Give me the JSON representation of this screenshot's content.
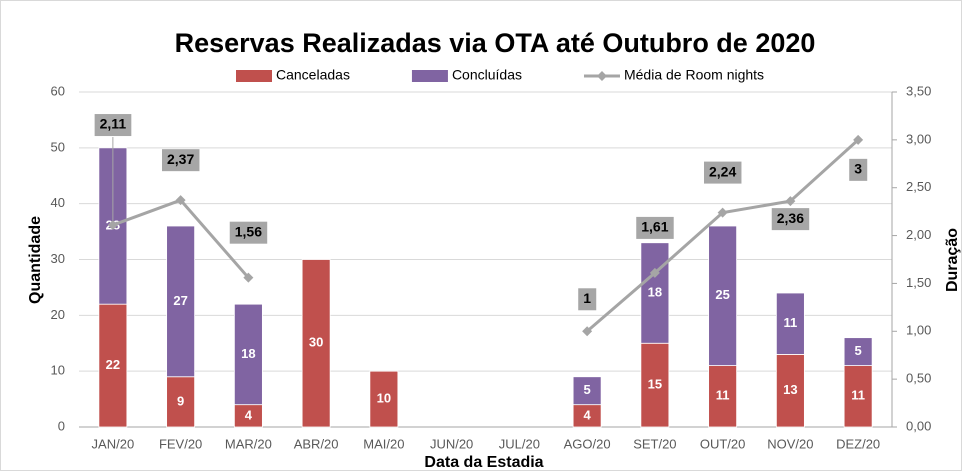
{
  "chart_data": {
    "type": "bar",
    "title": "Reservas Realizadas via OTA até Outubro de 2020",
    "xlabel": "Data da Estadia",
    "ylabel": "Quantidade",
    "y2label": "Duração",
    "categories": [
      "JAN/20",
      "FEV/20",
      "MAR/20",
      "ABR/20",
      "MAI/20",
      "JUN/20",
      "JUL/20",
      "AGO/20",
      "SET/20",
      "OUT/20",
      "NOV/20",
      "DEZ/20"
    ],
    "stacked": true,
    "legend": "top",
    "grid": true,
    "series": [
      {
        "name": "Canceladas",
        "type": "bar",
        "color": "#c0504d",
        "values": [
          22,
          9,
          4,
          30,
          10,
          null,
          null,
          4,
          15,
          11,
          13,
          11
        ]
      },
      {
        "name": "Concluídas",
        "type": "bar",
        "color": "#8064a2",
        "values": [
          28,
          27,
          18,
          null,
          null,
          null,
          null,
          5,
          18,
          25,
          11,
          5
        ]
      },
      {
        "name": "Média de Room nights",
        "type": "line",
        "axis": "y2",
        "color": "#a5a5a5",
        "values": [
          2.11,
          2.37,
          1.56,
          null,
          null,
          null,
          null,
          1,
          1.61,
          2.24,
          2.36,
          3
        ],
        "value_labels": [
          "2,11",
          "2,37",
          "1,56",
          null,
          null,
          null,
          null,
          "1",
          "1,61",
          "2,24",
          "2,36",
          "3"
        ]
      }
    ],
    "ylim": [
      0,
      60
    ],
    "yticks": [
      0,
      10,
      20,
      30,
      40,
      50,
      60
    ],
    "y2lim": [
      0,
      3.5
    ],
    "y2ticks": [
      {
        "value": 0,
        "label": "0,00"
      },
      {
        "value": 0.5,
        "label": "0,50"
      },
      {
        "value": 1,
        "label": "1,00"
      },
      {
        "value": 1.5,
        "label": "1,50"
      },
      {
        "value": 2,
        "label": "2,00"
      },
      {
        "value": 2.5,
        "label": "2,50"
      },
      {
        "value": 3,
        "label": "3,00"
      },
      {
        "value": 3.5,
        "label": "3,50"
      }
    ]
  }
}
